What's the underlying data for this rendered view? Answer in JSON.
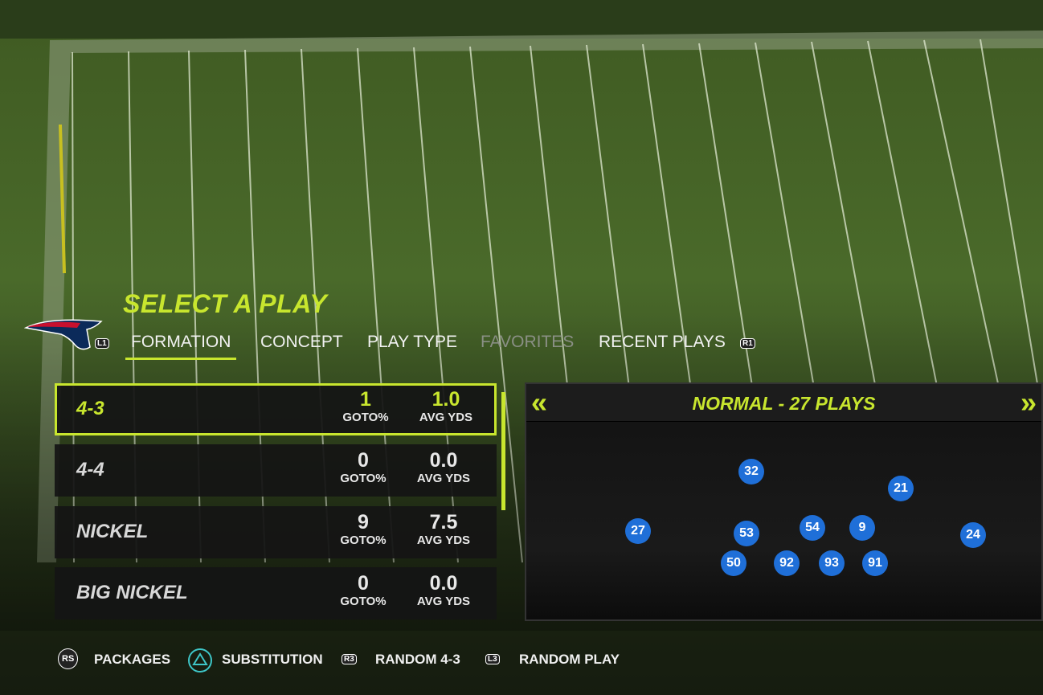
{
  "header": {
    "title": "SELECT A PLAY",
    "left_button": "L1",
    "right_button": "R1"
  },
  "tabs": [
    "FORMATION",
    "CONCEPT",
    "PLAY TYPE",
    "FAVORITES",
    "RECENT PLAYS"
  ],
  "selected_tab": 0,
  "disabled_tab": 3,
  "formations": [
    {
      "name": "4-3",
      "goto": "1",
      "goto_label": "GOTO%",
      "avg": "1.0",
      "avg_label": "AVG YDS"
    },
    {
      "name": "4-4",
      "goto": "0",
      "goto_label": "GOTO%",
      "avg": "0.0",
      "avg_label": "AVG YDS"
    },
    {
      "name": "NICKEL",
      "goto": "9",
      "goto_label": "GOTO%",
      "avg": "7.5",
      "avg_label": "AVG YDS"
    },
    {
      "name": "BIG NICKEL",
      "goto": "0",
      "goto_label": "GOTO%",
      "avg": "0.0",
      "avg_label": "AVG YDS"
    }
  ],
  "selected_formation": 0,
  "preview": {
    "title": "NORMAL - 27 PLAYS",
    "players": [
      "32",
      "21",
      "27",
      "53",
      "54",
      "9",
      "24",
      "50",
      "92",
      "93",
      "91"
    ]
  },
  "footer": [
    {
      "button": "RS",
      "label": "PACKAGES"
    },
    {
      "label": "SUBSTITUTION"
    },
    {
      "button": "R3",
      "label": "RANDOM 4-3"
    },
    {
      "button": "L3",
      "label": "RANDOM PLAY"
    }
  ]
}
